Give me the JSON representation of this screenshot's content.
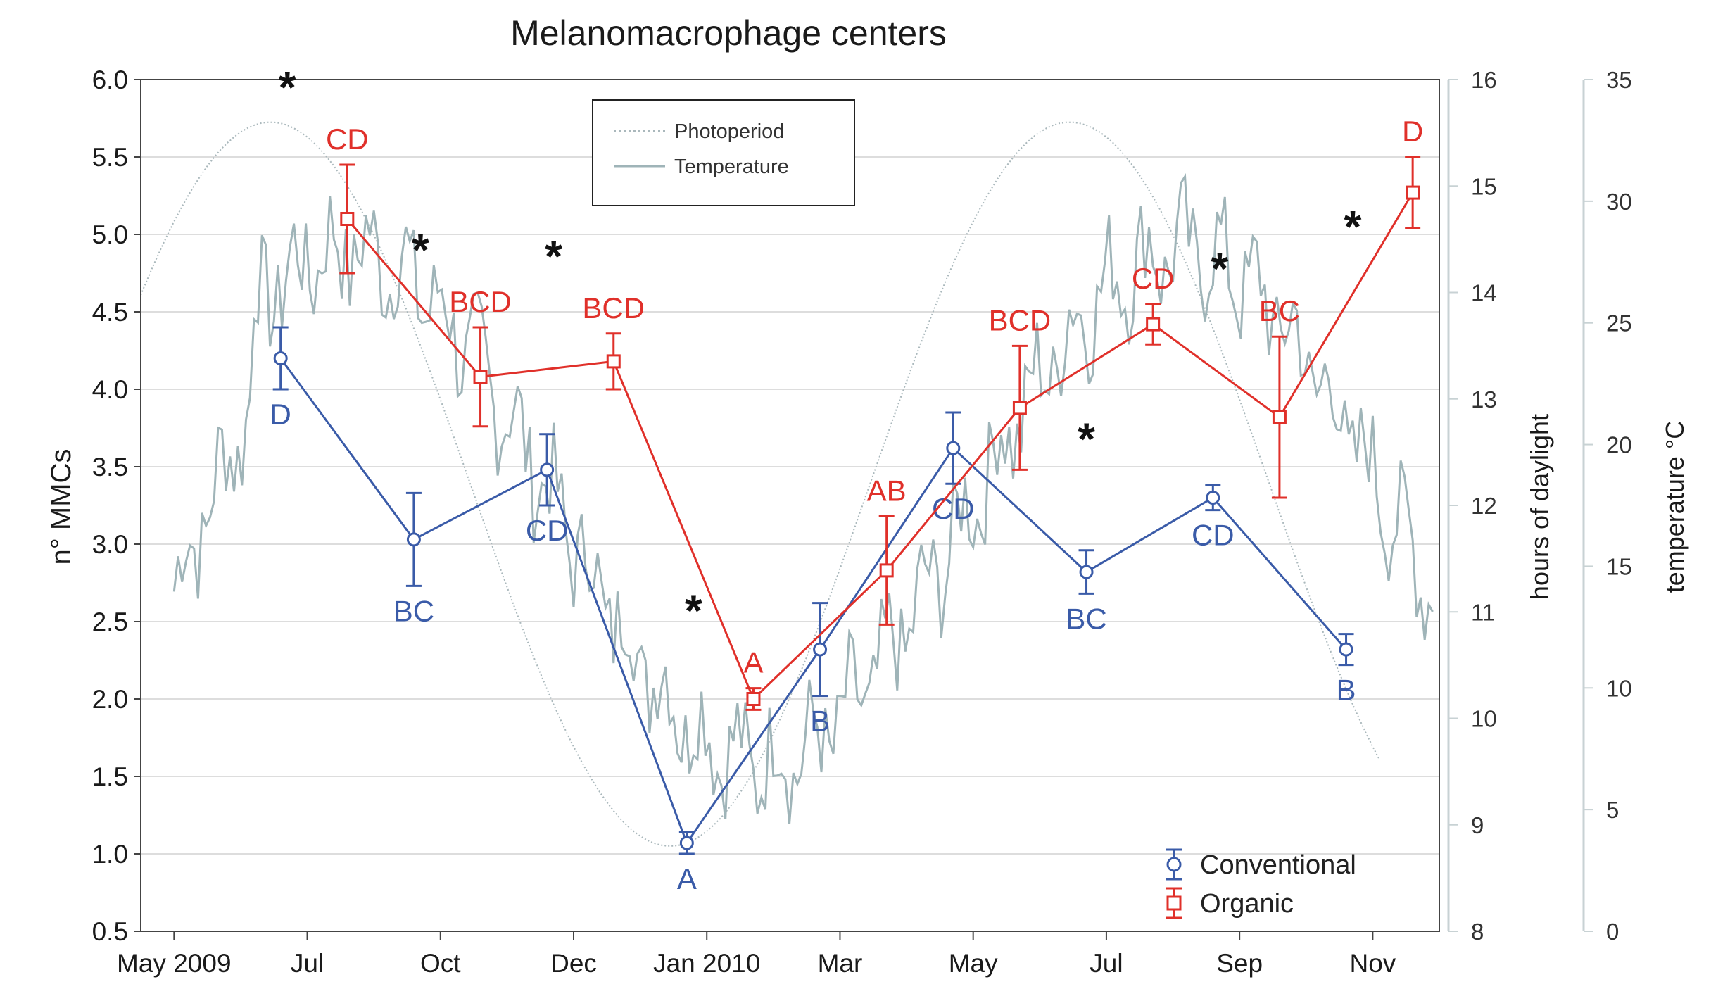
{
  "chart_data": {
    "type": "line",
    "title": "Melanomacrophage centers",
    "ylabel": "n° MMCs",
    "ylim": [
      0.5,
      6.0
    ],
    "yticks": [
      "0.5",
      "1.0",
      "1.5",
      "2.0",
      "2.5",
      "3.0",
      "3.5",
      "4.0",
      "4.5",
      "5.0",
      "5.5",
      "6.0"
    ],
    "xticks": [
      {
        "label": "May 2009",
        "month": 0
      },
      {
        "label": "Jul",
        "month": 2
      },
      {
        "label": "Oct",
        "month": 4
      },
      {
        "label": "Dec",
        "month": 6
      },
      {
        "label": "Jan 2010",
        "month": 8
      },
      {
        "label": "Mar",
        "month": 10
      },
      {
        "label": "May",
        "month": 12
      },
      {
        "label": "Jul",
        "month": 14
      },
      {
        "label": "Sep",
        "month": 16
      },
      {
        "label": "Nov",
        "month": 18
      }
    ],
    "xlim": [
      -0.5,
      19.0
    ],
    "right_axis_1": {
      "label": "hours of daylight",
      "range": [
        8,
        16
      ],
      "ticks": [
        "8",
        "9",
        "10",
        "11",
        "12",
        "13",
        "14",
        "15",
        "16"
      ]
    },
    "right_axis_2": {
      "label": "temperature °C",
      "range": [
        0,
        35
      ],
      "ticks": [
        "0",
        "5",
        "10",
        "15",
        "20",
        "25",
        "30",
        "35"
      ]
    },
    "grid": true,
    "series": [
      {
        "name": "Conventional",
        "color": "#3a5ba8",
        "x": [
          1.6,
          3.6,
          5.6,
          7.7,
          9.7,
          11.7,
          13.7,
          15.6,
          17.6
        ],
        "y": [
          4.2,
          3.03,
          3.48,
          1.07,
          2.32,
          3.62,
          2.82,
          3.3,
          2.32
        ],
        "err": [
          0.2,
          0.3,
          0.23,
          0.07,
          0.3,
          0.23,
          0.14,
          0.08,
          0.1
        ],
        "letters": [
          "D",
          "BC",
          "CD",
          "A",
          "B",
          "CD",
          "BC",
          "CD",
          "B"
        ]
      },
      {
        "name": "Organic",
        "color": "#e0302a",
        "x": [
          2.6,
          4.6,
          6.6,
          8.7,
          10.7,
          12.7,
          14.7,
          16.6,
          18.6
        ],
        "y": [
          5.1,
          4.08,
          4.18,
          2.0,
          2.83,
          3.88,
          4.42,
          3.82,
          5.27
        ],
        "err": [
          0.35,
          0.32,
          0.18,
          0.07,
          0.35,
          0.4,
          0.13,
          0.52,
          0.23
        ],
        "letters": [
          "CD",
          "BCD",
          "BCD",
          "A",
          "AB",
          "BCD",
          "CD",
          "BC",
          "D"
        ]
      }
    ],
    "significance_stars": [
      {
        "text": "*",
        "month": 1.7
      },
      {
        "text": "*",
        "month": 3.7
      },
      {
        "text": "*",
        "month": 5.7
      },
      {
        "text": "*",
        "month": 7.8
      },
      {
        "text": "*",
        "month": 13.7
      },
      {
        "text": "*",
        "month": 15.7
      },
      {
        "text": "*",
        "month": 17.7
      }
    ],
    "background_lines": [
      {
        "name": "Photoperiod",
        "color": "#aab8bc",
        "style": "dotted"
      },
      {
        "name": "Temperature",
        "color": "#9fb4b8",
        "style": "solid"
      }
    ],
    "legend": {
      "inset": [
        "Photoperiod",
        "Temperature"
      ],
      "main": [
        "Conventional",
        "Organic"
      ],
      "inset_position": "top-center",
      "main_position": "bottom-right"
    }
  }
}
